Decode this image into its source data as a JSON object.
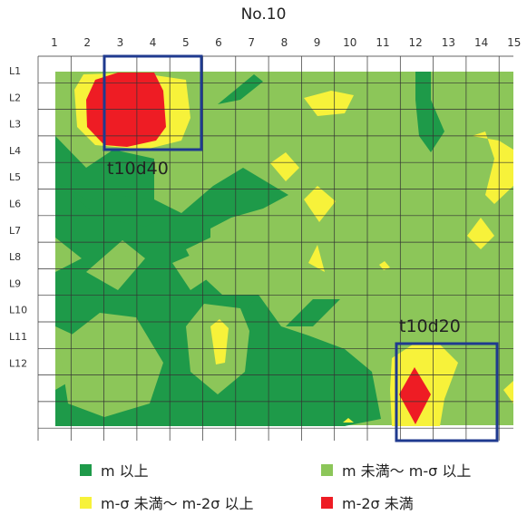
{
  "chart_data": {
    "type": "heatmap",
    "title": "No.10",
    "x_ticks": [
      "1",
      "2",
      "3",
      "4",
      "5",
      "6",
      "7",
      "8",
      "9",
      "10",
      "11",
      "12",
      "13",
      "14",
      "15"
    ],
    "y_ticks": [
      "L1",
      "L2",
      "L3",
      "L4",
      "L5",
      "L6",
      "L7",
      "L8",
      "L9",
      "L10",
      "L11",
      "L12"
    ],
    "legend": [
      {
        "label": "m 以上",
        "color": "#1e9a49"
      },
      {
        "label": "m 未満～ m-σ 以上",
        "color": "#8cc659"
      },
      {
        "label": "m-σ 未満～ m-2σ 以上",
        "color": "#f7f23a"
      },
      {
        "label": "m-2σ 未満",
        "color": "#ee1c24"
      }
    ],
    "annotations": [
      {
        "label": "t10d40",
        "x_range": [
          3,
          5.5
        ],
        "y_range": [
          "L1",
          "L3"
        ]
      },
      {
        "label": "t10d20",
        "x_range": [
          11.5,
          14.5
        ],
        "y_range": [
          "L10",
          "L12"
        ]
      }
    ],
    "box_color": "#1f3a8f"
  }
}
